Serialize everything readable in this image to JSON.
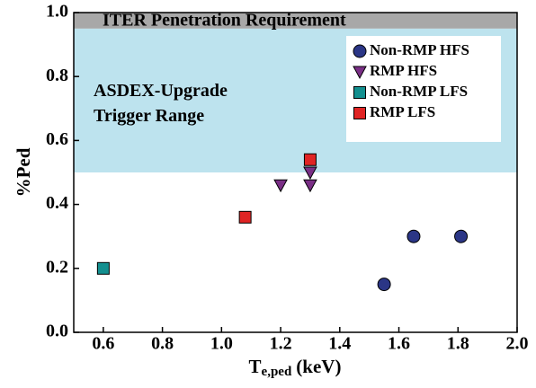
{
  "chart_data": {
    "type": "scatter",
    "xlabel": {
      "main": "T",
      "sub": "e,ped",
      "unit": "(keV)"
    },
    "ylabel": "%Ped",
    "xlim": [
      0.5,
      2.0
    ],
    "ylim": [
      0,
      1
    ],
    "xticks": [
      0.6,
      0.8,
      {
        "value": 1,
        "label": "1.0"
      },
      1.2,
      1.4,
      1.6,
      1.8,
      {
        "value": 2,
        "label": "2.0"
      }
    ],
    "yticks": [
      {
        "value": 0,
        "label": "0.0"
      },
      0.2,
      0.4,
      0.6,
      0.8,
      {
        "value": 1,
        "label": "1.0"
      }
    ],
    "bands": [
      {
        "label": "ASDEX-Upgrade\nTrigger Range",
        "range": [
          0.5,
          0.95
        ],
        "color": "#bde3ee"
      },
      {
        "label": "ITER Penetration Requirement",
        "range": [
          0.95,
          1
        ],
        "color": "#a8a8a8"
      }
    ],
    "legend": "upper right",
    "series": [
      {
        "name": "Non-RMP HFS",
        "color": "#2b3686",
        "marker": "circle",
        "x": [
          1.55,
          1.65,
          1.81
        ],
        "values": [
          0.15,
          0.3,
          0.3
        ]
      },
      {
        "name": "RMP HFS",
        "color": "#7a2f86",
        "marker": "triangle-down",
        "x": [
          1.2,
          1.3,
          1.3
        ],
        "values": [
          0.46,
          0.46,
          0.5
        ]
      },
      {
        "name": "Non-RMP LFS",
        "color": "#138f8f",
        "marker": "square",
        "x": [
          0.6
        ],
        "values": [
          0.2
        ]
      },
      {
        "name": "RMP LFS",
        "color": "#e02424",
        "marker": "square",
        "x": [
          1.08,
          1.3
        ],
        "values": [
          0.36,
          0.54
        ]
      }
    ]
  }
}
